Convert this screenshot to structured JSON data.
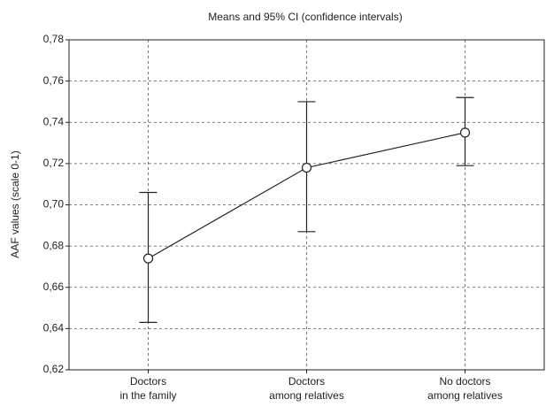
{
  "chart_data": {
    "type": "line",
    "title": "Means and 95% CI (confidence intervals)",
    "y_label": "AAF values (scale 0-1)",
    "categories": [
      [
        "Doctors",
        "in the family"
      ],
      [
        "Doctors",
        "among relatives"
      ],
      [
        "No doctors",
        "among relatives"
      ]
    ],
    "series": [
      {
        "color": "#222222",
        "values": [
          0.674,
          0.718,
          0.735
        ],
        "ci_low": [
          0.643,
          0.687,
          0.719
        ],
        "ci_high": [
          0.706,
          0.75,
          0.752
        ]
      }
    ],
    "ylim": [
      0.62,
      0.78
    ],
    "yticks": [
      {
        "value": 0.62,
        "label": "0,62"
      },
      {
        "value": 0.64,
        "label": "0,64"
      },
      {
        "value": 0.66,
        "label": "0,66"
      },
      {
        "value": 0.68,
        "label": "0,68"
      },
      {
        "value": 0.7,
        "label": "0,70"
      },
      {
        "value": 0.72,
        "label": "0,72"
      },
      {
        "value": 0.74,
        "label": "0,74"
      },
      {
        "value": 0.76,
        "label": "0,76"
      },
      {
        "value": 0.78,
        "label": "0,78"
      }
    ],
    "grid": true
  }
}
